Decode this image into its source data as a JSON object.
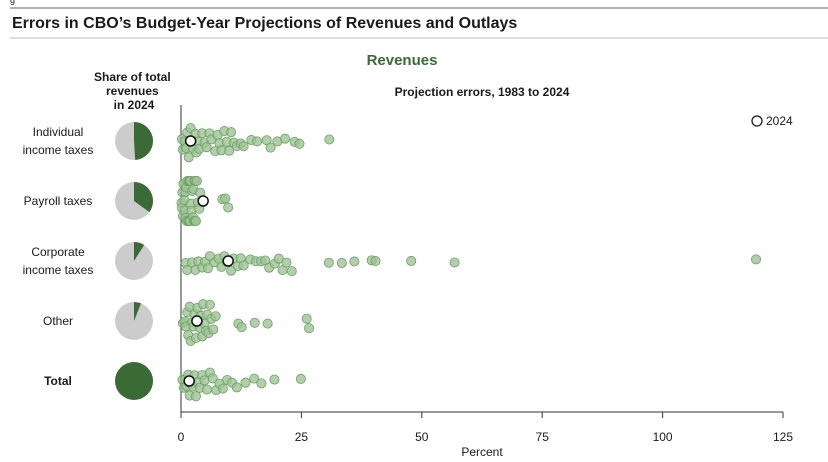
{
  "header": {
    "figure_label": "g",
    "title": "Errors in CBO’s Budget-Year Projections of Revenues and Outlays"
  },
  "colors": {
    "accent": "#3a6b35",
    "pie_bg": "#cccccc",
    "dot_fill": "#9cc494",
    "dot_stroke": "#6f9f67",
    "rule": "#999999",
    "axis": "#333333"
  },
  "share_header": [
    "Share of total",
    "revenues",
    "in 2024"
  ],
  "chart_data": {
    "type": "scatter",
    "section_title": "Revenues",
    "subtitle": "Projection errors, 1983 to 2024",
    "xlabel": "Percent",
    "xlim": [
      0,
      125
    ],
    "xticks": [
      0,
      25,
      50,
      75,
      100,
      125
    ],
    "legend": {
      "label": "2024",
      "position": "top-right"
    },
    "categories": [
      {
        "key": "individual",
        "label_lines": [
          "Individual",
          "income taxes"
        ],
        "bold": false,
        "share_2024": 0.49,
        "value_2024": 2,
        "errors": [
          0.2,
          0.4,
          0.8,
          1.1,
          1.3,
          1.6,
          2.0,
          2.3,
          2.5,
          3.0,
          3.2,
          3.5,
          3.8,
          4.4,
          4.9,
          5.3,
          5.9,
          6.3,
          7.1,
          7.6,
          8.0,
          8.4,
          9.0,
          9.5,
          10.0,
          10.4,
          11.0,
          11.6,
          12.4,
          13.0,
          14.6,
          15.8,
          17.8,
          18.6,
          20.0,
          21.6,
          23.6,
          24.6,
          30.8
        ]
      },
      {
        "key": "payroll",
        "label_lines": [
          "Payroll taxes"
        ],
        "bold": false,
        "share_2024": 0.35,
        "value_2024": 4.6,
        "errors": [
          0.1,
          0.2,
          0.3,
          0.4,
          0.5,
          0.7,
          0.8,
          0.9,
          1.0,
          1.1,
          1.2,
          1.3,
          1.5,
          1.6,
          1.7,
          1.8,
          1.9,
          2.0,
          2.1,
          2.2,
          2.3,
          2.5,
          2.6,
          2.7,
          2.8,
          2.9,
          3.0,
          3.1,
          3.3,
          3.5,
          3.8,
          4.0,
          8.6,
          9.2,
          9.8
        ]
      },
      {
        "key": "corporate",
        "label_lines": [
          "Corporate",
          "income taxes"
        ],
        "bold": false,
        "share_2024": 0.09,
        "value_2024": 9.8,
        "errors": [
          1.0,
          1.3,
          2.3,
          3.0,
          3.6,
          4.4,
          5.0,
          5.6,
          6.0,
          7.0,
          7.8,
          8.4,
          9.0,
          9.5,
          10.4,
          10.9,
          11.8,
          12.4,
          13.0,
          14.4,
          15.6,
          16.6,
          17.5,
          18.3,
          19.5,
          20.3,
          21.1,
          21.9,
          23.0,
          30.7,
          33.4,
          36.0,
          39.6,
          40.4,
          47.8,
          56.8,
          119.4
        ]
      },
      {
        "key": "other",
        "label_lines": [
          "Other"
        ],
        "bold": false,
        "share_2024": 0.06,
        "value_2024": 3.3,
        "errors": [
          0.4,
          0.8,
          1.0,
          1.3,
          1.5,
          1.8,
          2.0,
          2.3,
          2.6,
          2.8,
          3.1,
          3.4,
          3.6,
          3.9,
          4.1,
          4.4,
          4.6,
          4.9,
          5.2,
          5.4,
          5.7,
          6.0,
          6.3,
          6.7,
          7.2,
          11.9,
          12.6,
          15.3,
          18.0,
          26.1,
          26.6
        ]
      },
      {
        "key": "total",
        "label_lines": [
          "Total"
        ],
        "bold": true,
        "share_2024": 1.0,
        "value_2024": 1.7,
        "errors": [
          0.3,
          0.6,
          0.9,
          1.2,
          1.5,
          1.8,
          2.1,
          2.5,
          2.8,
          3.1,
          3.5,
          3.9,
          4.4,
          4.9,
          5.4,
          6.0,
          6.6,
          7.3,
          8.0,
          8.7,
          9.6,
          10.6,
          11.6,
          13.4,
          15.2,
          16.7,
          19.4,
          24.9
        ]
      }
    ]
  }
}
